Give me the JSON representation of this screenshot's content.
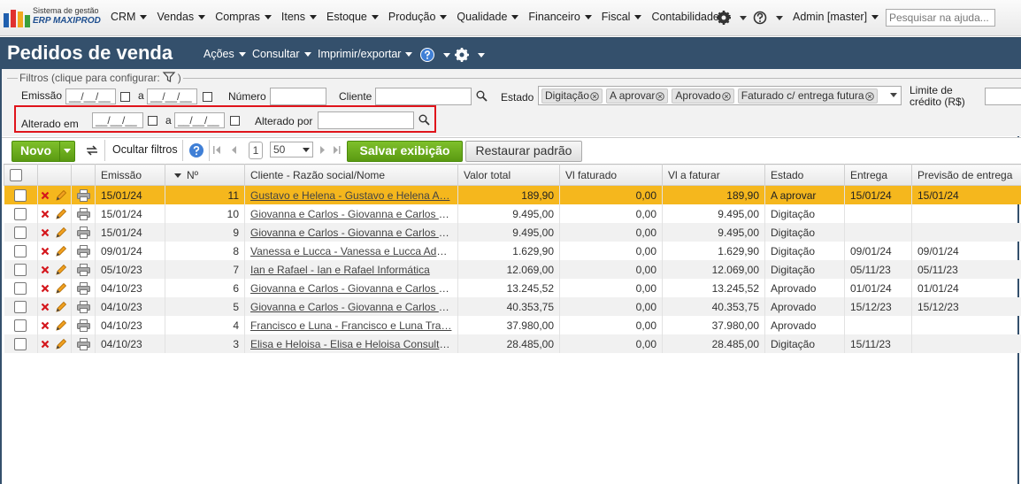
{
  "topbar": {
    "logo_line1": "Sistema de gestão",
    "logo_line2": "ERP MAXIPROD",
    "menu": [
      "CRM",
      "Vendas",
      "Compras",
      "Itens",
      "Estoque",
      "Produção",
      "Qualidade",
      "Financeiro",
      "Fiscal",
      "Contabilidade"
    ],
    "user": "Admin [master]",
    "search_placeholder": "Pesquisar na ajuda..."
  },
  "header": {
    "title": "Pedidos de venda",
    "actions": [
      "Ações",
      "Consultar",
      "Imprimir/exportar"
    ]
  },
  "filters": {
    "legend": "Filtros (clique para configurar:",
    "legend_close": ")",
    "emissao": "Emissão",
    "date_placeholder": "__/__/__",
    "range_sep": "a",
    "numero": "Número",
    "cliente": "Cliente",
    "estado": "Estado",
    "estado_chips": [
      "Digitação",
      "A aprovar",
      "Aprovado",
      "Faturado c/ entrega futura"
    ],
    "limite_credito": "Limite de crédito (R$)",
    "alterado_em": "Alterado em",
    "alterado_por": "Alterado por"
  },
  "toolbar": {
    "new": "Novo",
    "hide_filters": "Ocultar filtros",
    "page": "1",
    "page_size": "50",
    "save_view": "Salvar exibição",
    "restore_default": "Restaurar padrão"
  },
  "table": {
    "columns": [
      "Emissão",
      "Nº",
      "Cliente - Razão social/Nome",
      "Valor total",
      "Vl faturado",
      "Vl a faturar",
      "Estado",
      "Entrega",
      "Previsão de entrega"
    ],
    "rows": [
      [
        "15/01/24",
        "11",
        "Gustavo e Helena - Gustavo e Helena A…",
        "189,90",
        "0,00",
        "189,90",
        "A aprovar",
        "15/01/24",
        "15/01/24"
      ],
      [
        "15/01/24",
        "10",
        "Giovanna e Carlos - Giovanna e Carlos E…",
        "9.495,00",
        "0,00",
        "9.495,00",
        "Digitação",
        null,
        null
      ],
      [
        "15/01/24",
        "9",
        "Giovanna e Carlos - Giovanna e Carlos E…",
        "9.495,00",
        "0,00",
        "9.495,00",
        "Digitação",
        null,
        null
      ],
      [
        "09/01/24",
        "8",
        "Vanessa e Lucca - Vanessa e Lucca Adv…",
        "1.629,90",
        "0,00",
        "1.629,90",
        "Digitação",
        "09/01/24",
        "09/01/24"
      ],
      [
        "05/10/23",
        "7",
        "Ian e Rafael - Ian e Rafael Informática",
        "12.069,00",
        "0,00",
        "12.069,00",
        "Digitação",
        "05/11/23",
        "05/11/23"
      ],
      [
        "04/10/23",
        "6",
        "Giovanna e Carlos - Giovanna e Carlos E…",
        "13.245,52",
        "0,00",
        "13.245,52",
        "Aprovado",
        "01/01/24",
        "01/01/24"
      ],
      [
        "04/10/23",
        "5",
        "Giovanna e Carlos - Giovanna e Carlos E…",
        "40.353,75",
        "0,00",
        "40.353,75",
        "Aprovado",
        "15/12/23",
        "15/12/23"
      ],
      [
        "04/10/23",
        "4",
        "Francisco e Luna - Francisco e Luna Tra…",
        "37.980,00",
        "0,00",
        "37.980,00",
        "Aprovado",
        null,
        null
      ],
      [
        "04/10/23",
        "3",
        "Elisa e Heloisa - Elisa e Heloisa Consulto…",
        "28.485,00",
        "0,00",
        "28.485,00",
        "Digitação",
        "15/11/23",
        null
      ]
    ]
  }
}
